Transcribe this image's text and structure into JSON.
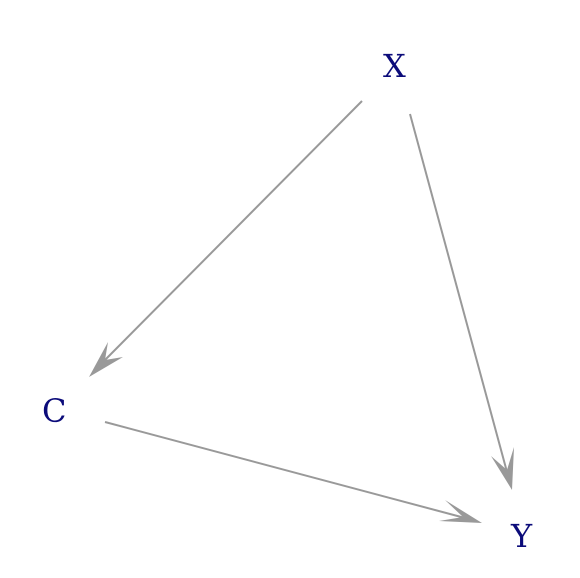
{
  "diagram": {
    "type": "directed-acyclic-graph",
    "colors": {
      "background": "#ffffff",
      "node_text": "#0b0b7a",
      "edge": "#999999"
    },
    "nodes": [
      {
        "id": "X",
        "label": "X"
      },
      {
        "id": "C",
        "label": "C"
      },
      {
        "id": "Y",
        "label": "Y"
      }
    ],
    "edges": [
      {
        "from": "X",
        "to": "C"
      },
      {
        "from": "X",
        "to": "Y"
      },
      {
        "from": "C",
        "to": "Y"
      }
    ]
  }
}
